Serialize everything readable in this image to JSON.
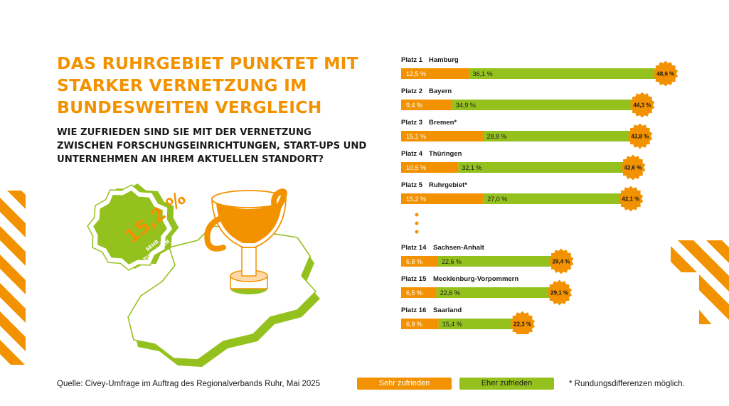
{
  "header": {
    "title": "DAS RUHRGEBIET PUNKTET MIT STARKER VERNETZUNG IM BUNDESWEITEN VERGLEICH",
    "question": "WIE ZUFRIEDEN SIND SIE MIT DER VERNETZUNG ZWISCHEN FORSCHUNGSEINRICHTUNGEN, START-UPS UND UNTERNEHMEN AN IHREM AKTUELLEN STANDORT?"
  },
  "illustration": {
    "badge_value": "15,2 %",
    "badge_label_line1": "SEHR",
    "badge_label_line2": "ZUFRIEDEN"
  },
  "colors": {
    "orange": "#f39200",
    "green": "#95c11f",
    "dark": "#1a1a1a"
  },
  "chart_data": {
    "type": "bar",
    "stacked": true,
    "orientation": "horizontal",
    "unit": "%",
    "series": [
      {
        "name": "Sehr zufrieden",
        "color": "#f39200",
        "values": [
          12.5,
          9.4,
          15.1,
          10.5,
          15.2,
          6.8,
          6.5,
          6.9
        ]
      },
      {
        "name": "Eher zufrieden",
        "color": "#95c11f",
        "values": [
          36.1,
          34.9,
          28.8,
          32.1,
          27.0,
          22.6,
          22.6,
          15.4
        ]
      }
    ],
    "rows": [
      {
        "rank": "Platz 1",
        "name": "Hamburg",
        "sehr": 12.5,
        "eher": 36.1,
        "total": 48.6,
        "sehr_label": "12,5 %",
        "eher_label": "36,1 %",
        "total_label": "48,6 %"
      },
      {
        "rank": "Platz 2",
        "name": "Bayern",
        "sehr": 9.4,
        "eher": 34.9,
        "total": 44.3,
        "sehr_label": "9,4 %",
        "eher_label": "34,9 %",
        "total_label": "44,3 %"
      },
      {
        "rank": "Platz 3",
        "name": "Bremen*",
        "sehr": 15.1,
        "eher": 28.8,
        "total": 43.8,
        "sehr_label": "15,1 %",
        "eher_label": "28,8 %",
        "total_label": "43,8 %"
      },
      {
        "rank": "Platz 4",
        "name": "Thüringen",
        "sehr": 10.5,
        "eher": 32.1,
        "total": 42.6,
        "sehr_label": "10,5 %",
        "eher_label": "32,1 %",
        "total_label": "42,6 %"
      },
      {
        "rank": "Platz 5",
        "name": "Ruhrgebiet*",
        "sehr": 15.2,
        "eher": 27.0,
        "total": 42.1,
        "sehr_label": "15,2 %",
        "eher_label": "27,0 %",
        "total_label": "42,1 %"
      },
      {
        "rank": "Platz 14",
        "name": "Sachsen-Anhalt",
        "sehr": 6.8,
        "eher": 22.6,
        "total": 29.4,
        "sehr_label": "6,8 %",
        "eher_label": "22,6 %",
        "total_label": "29,4 %"
      },
      {
        "rank": "Platz 15",
        "name": "Mecklenburg-Vorpommern",
        "sehr": 6.5,
        "eher": 22.6,
        "total": 29.1,
        "sehr_label": "6,5 %",
        "eher_label": "22,6 %",
        "total_label": "29,1 %"
      },
      {
        "rank": "Platz 16",
        "name": "Saarland",
        "sehr": 6.9,
        "eher": 15.4,
        "total": 22.3,
        "sehr_label": "6,9 %",
        "eher_label": "15,4 %",
        "total_label": "22,3 %"
      }
    ]
  },
  "footer": {
    "source": "Quelle: Civey-Umfrage im Auftrag des Regionalverbands Ruhr, Mai 2025",
    "legend_sehr": "Sehr zufrieden",
    "legend_eher": "Eher zufrieden",
    "note": "* Rundungsdifferenzen möglich."
  }
}
